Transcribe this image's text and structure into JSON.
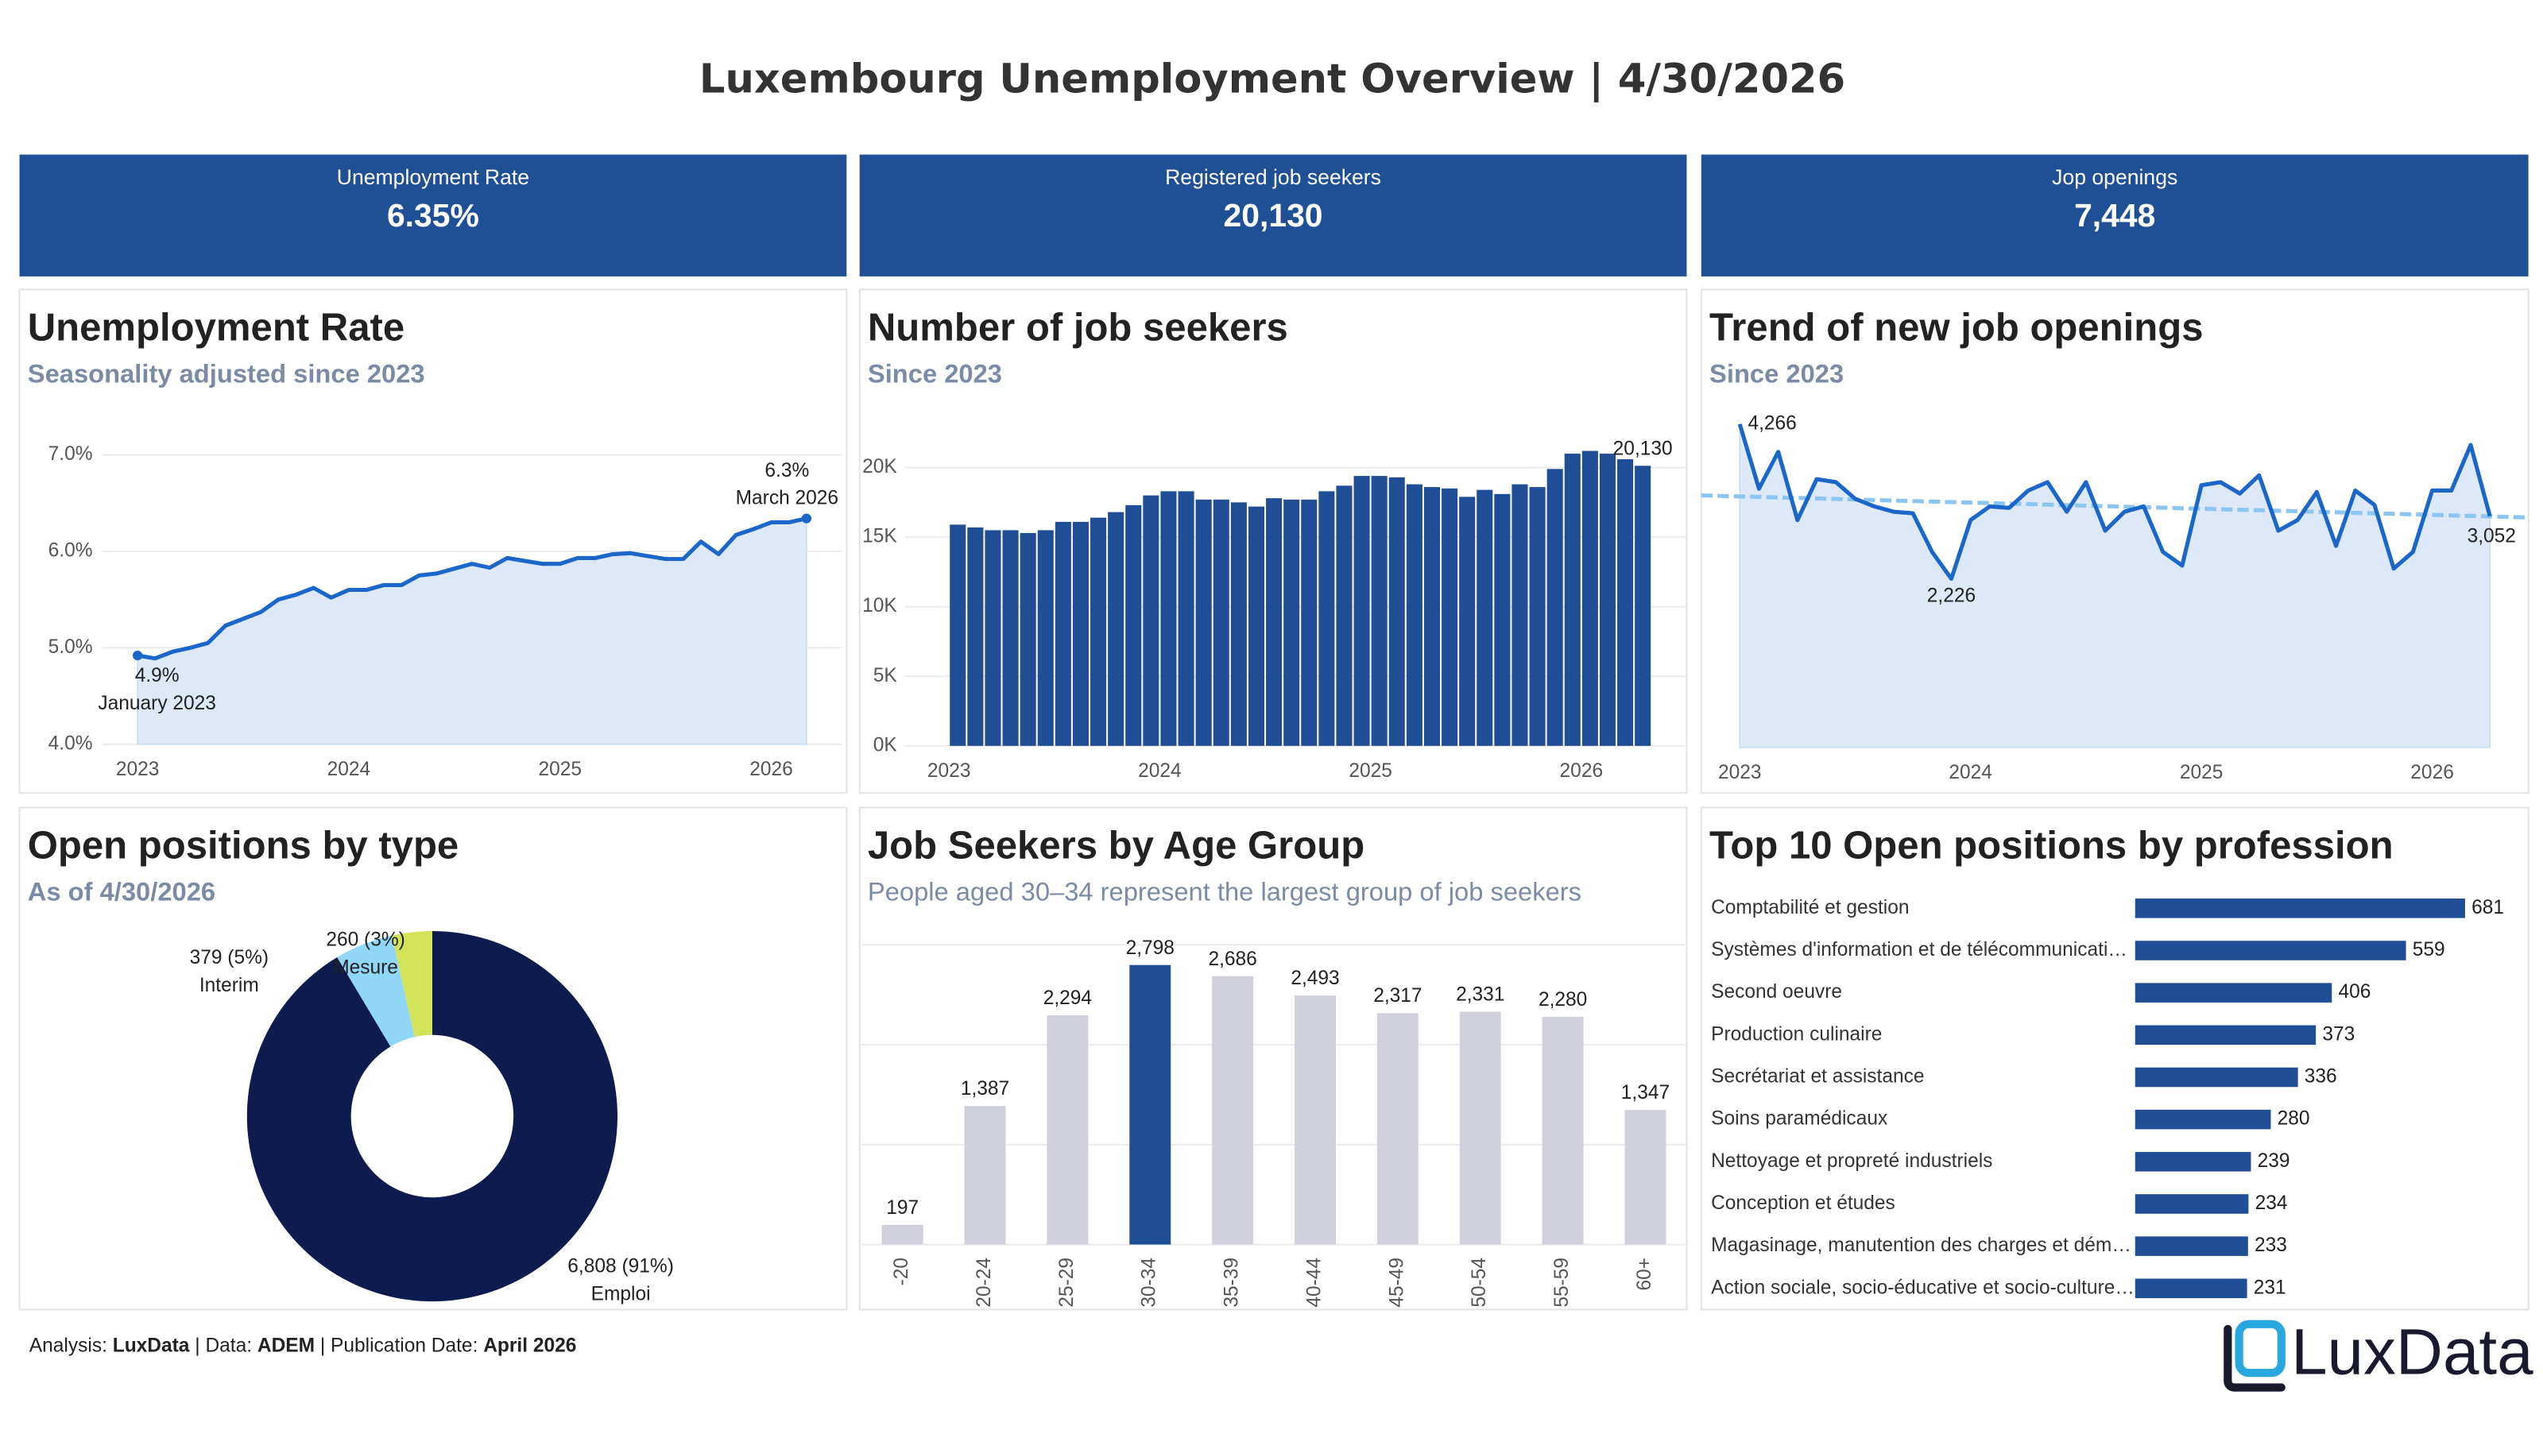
{
  "header": {
    "title": "Luxembourg Unemployment Overview | 4/30/2026"
  },
  "kpis": [
    {
      "label": "Unemployment Rate",
      "value": "6.35%"
    },
    {
      "label": "Registered job seekers",
      "value": "20,130"
    },
    {
      "label": "Jop openings",
      "value": "7,448"
    }
  ],
  "chart_data": [
    {
      "type": "line",
      "title": "Unemployment Rate",
      "subtitle": "Seasonality adjusted since 2023",
      "x": [
        "2023-01",
        "2023-02",
        "2023-03",
        "2023-04",
        "2023-05",
        "2023-06",
        "2023-07",
        "2023-08",
        "2023-09",
        "2023-10",
        "2023-11",
        "2023-12",
        "2024-01",
        "2024-02",
        "2024-03",
        "2024-04",
        "2024-05",
        "2024-06",
        "2024-07",
        "2024-08",
        "2024-09",
        "2024-10",
        "2024-11",
        "2024-12",
        "2025-01",
        "2025-02",
        "2025-03",
        "2025-04",
        "2025-05",
        "2025-06",
        "2025-07",
        "2025-08",
        "2025-09",
        "2025-10",
        "2025-11",
        "2025-12",
        "2026-01",
        "2026-02",
        "2026-03"
      ],
      "values": [
        4.92,
        4.89,
        4.96,
        5.0,
        5.05,
        5.23,
        5.3,
        5.37,
        5.5,
        5.55,
        5.62,
        5.52,
        5.6,
        5.6,
        5.65,
        5.65,
        5.75,
        5.77,
        5.82,
        5.87,
        5.83,
        5.93,
        5.9,
        5.87,
        5.87,
        5.93,
        5.93,
        5.97,
        5.98,
        5.95,
        5.92,
        5.92,
        6.1,
        5.97,
        6.17,
        6.23,
        6.3,
        6.3,
        6.34
      ],
      "value_labels": [
        "4.9%",
        null,
        null,
        null,
        null,
        null,
        null,
        null,
        null,
        null,
        null,
        null,
        null,
        null,
        null,
        null,
        null,
        null,
        null,
        null,
        null,
        null,
        null,
        null,
        null,
        null,
        null,
        null,
        null,
        null,
        null,
        null,
        null,
        null,
        null,
        null,
        null,
        null,
        "6.3%"
      ],
      "annotations": [
        "January 2023",
        null,
        null,
        null,
        null,
        null,
        null,
        null,
        null,
        null,
        null,
        null,
        null,
        null,
        null,
        null,
        null,
        null,
        null,
        null,
        null,
        null,
        null,
        null,
        null,
        null,
        null,
        null,
        null,
        null,
        null,
        null,
        null,
        null,
        null,
        null,
        null,
        null,
        "March 2026"
      ],
      "color": "#1b66c9",
      "area_color": "#dde9f8",
      "label_markers": true,
      "xlim": [
        "2022-11",
        "2026-05"
      ],
      "xticks": [
        2023,
        2024,
        2025,
        2026
      ],
      "ylim": [
        4.0,
        7.3
      ],
      "yticks": [
        {
          "value": 4,
          "label": "4.0%"
        },
        {
          "value": 5,
          "label": "5.0%"
        },
        {
          "value": 6,
          "label": "6.0%"
        },
        {
          "value": 7,
          "label": "7.0%"
        }
      ],
      "grid": true
    },
    {
      "type": "bar",
      "title": "Number of job seekers",
      "subtitle": "Since 2023",
      "x": [
        "2023-01",
        "2023-02",
        "2023-03",
        "2023-04",
        "2023-05",
        "2023-06",
        "2023-07",
        "2023-08",
        "2023-09",
        "2023-10",
        "2023-11",
        "2023-12",
        "2024-01",
        "2024-02",
        "2024-03",
        "2024-04",
        "2024-05",
        "2024-06",
        "2024-07",
        "2024-08",
        "2024-09",
        "2024-10",
        "2024-11",
        "2024-12",
        "2025-01",
        "2025-02",
        "2025-03",
        "2025-04",
        "2025-05",
        "2025-06",
        "2025-07",
        "2025-08",
        "2025-09",
        "2025-10",
        "2025-11",
        "2025-12",
        "2026-01",
        "2026-02",
        "2026-03",
        "2026-04"
      ],
      "values": [
        15900,
        15700,
        15500,
        15500,
        15300,
        15500,
        16100,
        16100,
        16400,
        16800,
        17300,
        18000,
        18300,
        18300,
        17700,
        17700,
        17500,
        17200,
        17800,
        17700,
        17700,
        18300,
        18700,
        19400,
        19400,
        19300,
        18800,
        18600,
        18500,
        17900,
        18400,
        18100,
        18800,
        18600,
        19900,
        21000,
        21200,
        21000,
        20600,
        20130
      ],
      "value_labels": [
        null,
        null,
        null,
        null,
        null,
        null,
        null,
        null,
        null,
        null,
        null,
        null,
        null,
        null,
        null,
        null,
        null,
        null,
        null,
        null,
        null,
        null,
        null,
        null,
        null,
        null,
        null,
        null,
        null,
        null,
        null,
        null,
        null,
        null,
        null,
        null,
        null,
        null,
        null,
        "20,130"
      ],
      "color": "#1f4e96",
      "xlim": [
        "2022-08",
        "2026-07"
      ],
      "xticks": [
        2023,
        2024,
        2025,
        2026
      ],
      "ylim": [
        0,
        23000
      ],
      "yticks": [
        {
          "value": 0,
          "label": "0K"
        },
        {
          "value": 5000,
          "label": "5K"
        },
        {
          "value": 10000,
          "label": "10K"
        },
        {
          "value": 15000,
          "label": "15K"
        },
        {
          "value": 20000,
          "label": "20K"
        }
      ],
      "grid": true
    },
    {
      "type": "line",
      "title": "Trend of new job openings",
      "subtitle": "Since 2023",
      "x": [
        "2023-01",
        "2023-02",
        "2023-03",
        "2023-04",
        "2023-05",
        "2023-06",
        "2023-07",
        "2023-08",
        "2023-09",
        "2023-10",
        "2023-11",
        "2023-12",
        "2024-01",
        "2024-02",
        "2024-03",
        "2024-04",
        "2024-05",
        "2024-06",
        "2024-07",
        "2024-08",
        "2024-09",
        "2024-10",
        "2024-11",
        "2024-12",
        "2025-01",
        "2025-02",
        "2025-03",
        "2025-04",
        "2025-05",
        "2025-06",
        "2025-07",
        "2025-08",
        "2025-09",
        "2025-10",
        "2025-11",
        "2025-12",
        "2026-01",
        "2026-02",
        "2026-03",
        "2026-04"
      ],
      "values": [
        4266,
        3414,
        3900,
        3000,
        3540,
        3500,
        3280,
        3180,
        3110,
        3090,
        2580,
        2226,
        3000,
        3180,
        3160,
        3390,
        3500,
        3110,
        3500,
        2860,
        3110,
        3180,
        2580,
        2400,
        3460,
        3500,
        3350,
        3590,
        2860,
        3000,
        3370,
        2660,
        3390,
        3200,
        2360,
        2580,
        3390,
        3390,
        3990,
        3052
      ],
      "value_labels": [
        "4,266",
        null,
        null,
        null,
        null,
        null,
        null,
        null,
        null,
        null,
        null,
        "2,226",
        null,
        null,
        null,
        null,
        null,
        null,
        null,
        null,
        null,
        null,
        null,
        null,
        null,
        null,
        null,
        null,
        null,
        null,
        null,
        null,
        null,
        null,
        null,
        null,
        null,
        null,
        null,
        "3,052"
      ],
      "color": "#1b66c9",
      "area_color": "#dde9f8",
      "trendline": true,
      "trend_color": "#8cc6f0",
      "xlim": [
        "2022-11",
        "2026-06"
      ],
      "xticks": [
        2023,
        2024,
        2025,
        2026
      ],
      "ylim": [
        0,
        4500
      ]
    },
    {
      "type": "pie",
      "title": "Open positions by type",
      "subtitle": "As of 4/30/2026",
      "categories": [
        "Emploi",
        "Interim",
        "Mesure"
      ],
      "values": [
        6808,
        379,
        260
      ],
      "value_labels": [
        "6,808 (91%)",
        "379 (5%)",
        "260 (3%)"
      ],
      "colors": [
        "#0d1b4f",
        "#8fd6f8",
        "#d2e35a"
      ],
      "donut": true
    },
    {
      "type": "bar",
      "title": "Job Seekers by Age Group",
      "subtitle": "People aged 30–34 represent the largest group of job seekers",
      "categories": [
        "-20",
        "20-24",
        "25-29",
        "30-34",
        "35-39",
        "40-44",
        "45-49",
        "50-54",
        "55-59",
        "60+"
      ],
      "values": [
        197,
        1387,
        2294,
        2798,
        2686,
        2493,
        2317,
        2331,
        2280,
        1347
      ],
      "value_labels": [
        "197",
        "1,387",
        "2,294",
        "2,798",
        "2,686",
        "2,493",
        "2,317",
        "2,331",
        "2,280",
        "1,347"
      ],
      "color": "#d0d0dc",
      "highlight": "30-34",
      "highlight_color": "#1f4e96",
      "ylim": [
        0,
        3000
      ],
      "yticks": [
        0,
        1000,
        2000,
        3000
      ],
      "grid": true
    },
    {
      "type": "barh",
      "title": "Top 10 Open positions by profession",
      "categories": [
        "Comptabilité et gestion",
        "Systèmes d'information et de télécommunicati…",
        "Second oeuvre",
        "Production culinaire",
        "Secrétariat et assistance",
        "Soins paramédicaux",
        "Nettoyage et propreté industriels",
        "Conception et études",
        "Magasinage, manutention des charges et dém…",
        "Action sociale, socio-éducative et socio-culture…"
      ],
      "values": [
        681,
        559,
        406,
        373,
        336,
        280,
        239,
        234,
        233,
        231
      ],
      "color": "#1f4e96",
      "xlim": [
        0,
        700
      ]
    }
  ],
  "footer": {
    "analysis_label": "Analysis:",
    "analysis": "LuxData",
    "data_label": "| Data:",
    "data": "ADEM",
    "date_label": "| Publication Date:",
    "date": "April 2026"
  },
  "logo": {
    "text": "LuxData"
  }
}
